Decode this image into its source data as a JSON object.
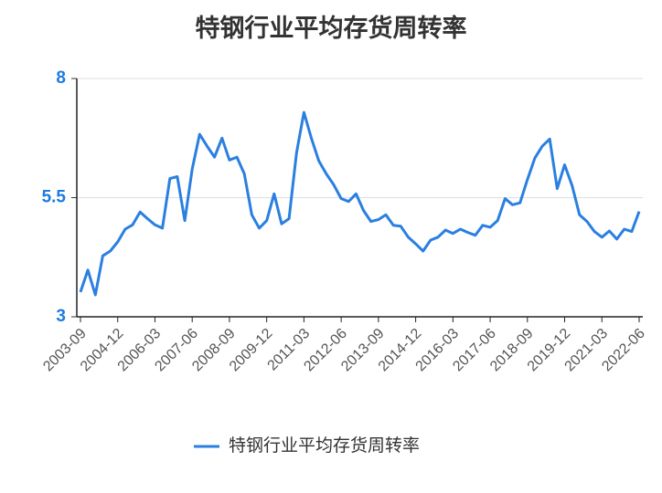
{
  "chart_data": {
    "type": "line",
    "title": "特钢行业平均存货周转率",
    "categories": [
      "2003-09",
      null,
      null,
      null,
      null,
      "2004-12",
      null,
      null,
      null,
      null,
      "2006-03",
      null,
      null,
      null,
      null,
      "2007-06",
      null,
      null,
      null,
      null,
      "2008-09",
      null,
      null,
      null,
      null,
      "2009-12",
      null,
      null,
      null,
      null,
      "2011-03",
      null,
      null,
      null,
      null,
      "2012-06",
      null,
      null,
      null,
      null,
      "2013-09",
      null,
      null,
      null,
      null,
      "2014-12",
      null,
      null,
      null,
      null,
      "2016-03",
      null,
      null,
      null,
      null,
      "2017-06",
      null,
      null,
      null,
      null,
      "2018-09",
      null,
      null,
      null,
      null,
      "2019-12",
      null,
      null,
      null,
      null,
      "2021-03",
      null,
      null,
      null,
      null,
      "2022-06"
    ],
    "series": [
      {
        "name": "特钢行业平均存货周转率",
        "color": "#2a7fe0",
        "values": [
          3.52,
          3.98,
          3.46,
          4.28,
          4.38,
          4.57,
          4.84,
          4.93,
          5.2,
          5.06,
          4.93,
          4.86,
          5.9,
          5.94,
          5.02,
          6.1,
          6.83,
          6.58,
          6.35,
          6.75,
          6.29,
          6.35,
          6.0,
          5.14,
          4.86,
          5.02,
          5.58,
          4.95,
          5.06,
          6.44,
          7.29,
          6.75,
          6.27,
          6.0,
          5.77,
          5.48,
          5.42,
          5.58,
          5.23,
          5.0,
          5.04,
          5.14,
          4.92,
          4.9,
          4.67,
          4.53,
          4.38,
          4.61,
          4.67,
          4.82,
          4.75,
          4.84,
          4.77,
          4.71,
          4.92,
          4.88,
          5.02,
          5.48,
          5.35,
          5.39,
          5.88,
          6.33,
          6.58,
          6.73,
          5.69,
          6.19,
          5.75,
          5.14,
          5.0,
          4.79,
          4.67,
          4.8,
          4.63,
          4.84,
          4.79,
          5.21
        ]
      }
    ],
    "ylim": [
      3,
      8
    ],
    "yticks": [
      3,
      5.5,
      8
    ],
    "grid": true,
    "legend": "bottom"
  }
}
